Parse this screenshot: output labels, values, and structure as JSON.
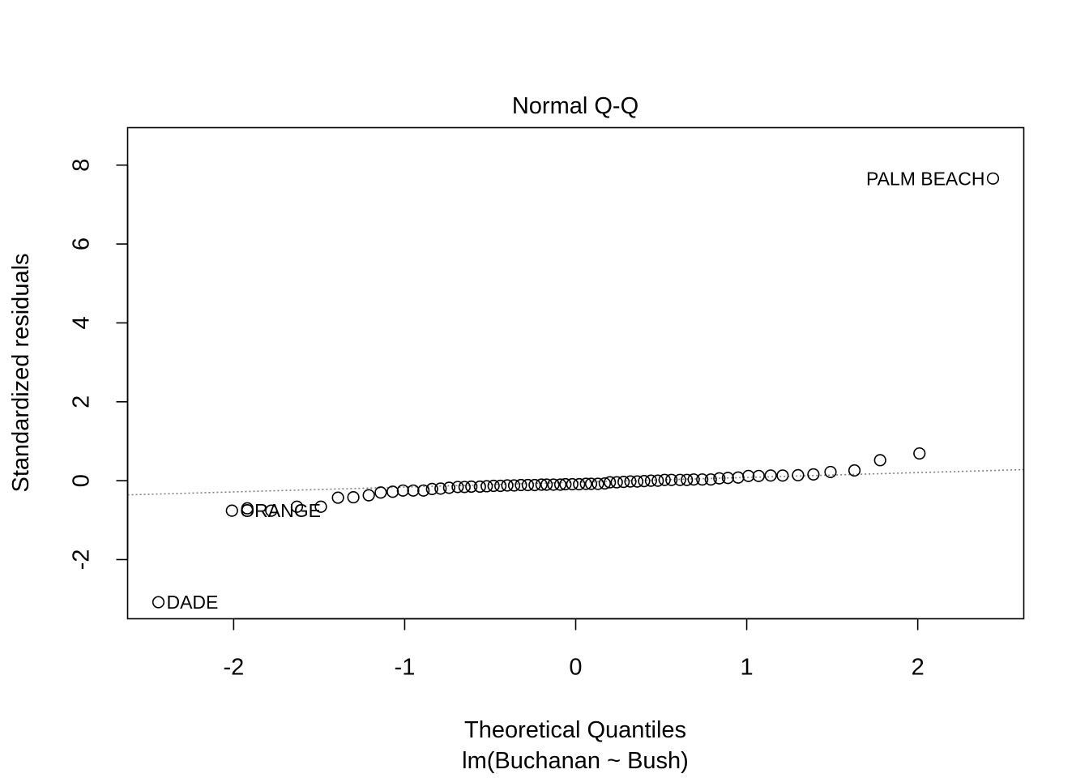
{
  "chart_data": {
    "type": "scatter",
    "title": "Normal Q-Q",
    "xlabel": "Theoretical Quantiles",
    "xlabel_sub": "lm(Buchanan ~ Bush)",
    "ylabel": "Standardized residuals",
    "xlim": [
      -2.62,
      2.62
    ],
    "ylim": [
      -3.5,
      8.95
    ],
    "x_ticks": [
      -2,
      -1,
      0,
      1,
      2
    ],
    "x_tick_labels": [
      "-2",
      "-1",
      "0",
      "1",
      "2"
    ],
    "y_ticks": [
      -2,
      0,
      2,
      4,
      6,
      8
    ],
    "y_tick_labels": [
      "-2",
      "0",
      "2",
      "4",
      "6",
      "8"
    ],
    "grid": false,
    "reference_line": {
      "style": "dotted",
      "color": "#808080",
      "x": [
        -2.62,
        2.62
      ],
      "y": [
        -0.36,
        0.28
      ]
    },
    "point_style": {
      "shape": "open-circle",
      "stroke": "#000000"
    },
    "series": [
      {
        "x": [
          -2.44,
          -2.01,
          -1.92,
          -1.78,
          -1.63,
          -1.49,
          -1.39,
          -1.3,
          -1.21,
          -1.14,
          -1.07,
          -1.01,
          -0.95,
          -0.89,
          -0.84,
          -0.79,
          -0.74,
          -0.69,
          -0.65,
          -0.61,
          -0.56,
          -0.52,
          -0.48,
          -0.44,
          -0.4,
          -0.36,
          -0.32,
          -0.28,
          -0.24,
          -0.2,
          -0.17,
          -0.13,
          -0.09,
          -0.06,
          -0.02,
          0.02,
          0.06,
          0.09,
          0.13,
          0.17,
          0.2,
          0.24,
          0.28,
          0.32,
          0.36,
          0.4,
          0.44,
          0.48,
          0.52,
          0.56,
          0.61,
          0.65,
          0.69,
          0.74,
          0.79,
          0.84,
          0.89,
          0.95,
          1.01,
          1.07,
          1.14,
          1.21,
          1.3,
          1.39,
          1.49,
          1.63,
          1.78,
          2.01,
          2.44
        ],
        "y": [
          -3.08,
          -0.76,
          -0.7,
          -0.76,
          -0.66,
          -0.66,
          -0.43,
          -0.42,
          -0.37,
          -0.3,
          -0.28,
          -0.25,
          -0.25,
          -0.25,
          -0.21,
          -0.2,
          -0.18,
          -0.16,
          -0.16,
          -0.15,
          -0.15,
          -0.14,
          -0.13,
          -0.13,
          -0.12,
          -0.12,
          -0.11,
          -0.11,
          -0.11,
          -0.1,
          -0.1,
          -0.1,
          -0.1,
          -0.09,
          -0.09,
          -0.09,
          -0.08,
          -0.08,
          -0.08,
          -0.07,
          -0.04,
          -0.04,
          -0.03,
          -0.02,
          -0.02,
          -0.01,
          0.0,
          0.0,
          0.02,
          0.02,
          0.02,
          0.02,
          0.03,
          0.03,
          0.03,
          0.06,
          0.07,
          0.08,
          0.12,
          0.12,
          0.13,
          0.13,
          0.14,
          0.16,
          0.22,
          0.26,
          0.52,
          0.69,
          7.66
        ]
      }
    ],
    "point_labels": [
      {
        "text": "DADE",
        "x": -2.44,
        "y": -3.08,
        "side": "right"
      },
      {
        "text": "ORANGE",
        "x": -2.01,
        "y": -0.76,
        "side": "right"
      },
      {
        "text": "PALM BEACH",
        "x": 2.44,
        "y": 7.66,
        "side": "left"
      }
    ]
  }
}
